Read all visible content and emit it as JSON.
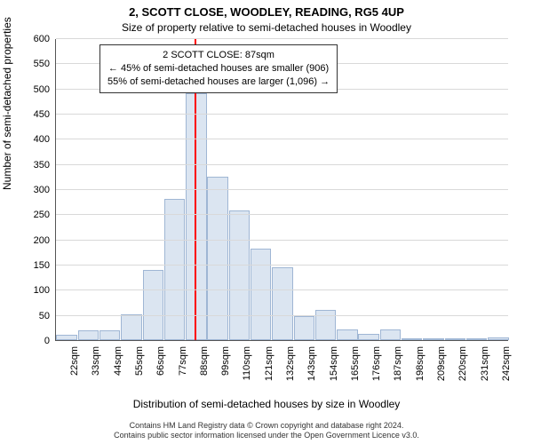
{
  "title_main": "2, SCOTT CLOSE, WOODLEY, READING, RG5 4UP",
  "title_sub": "Size of property relative to semi-detached houses in Woodley",
  "ylabel": "Number of semi-detached properties",
  "xlabel": "Distribution of semi-detached houses by size in Woodley",
  "annotation": {
    "line1": "2 SCOTT CLOSE: 87sqm",
    "line2": "← 45% of semi-detached houses are smaller (906)",
    "line3": "55% of semi-detached houses are larger (1,096) →"
  },
  "footer": {
    "line1": "Contains HM Land Registry data © Crown copyright and database right 2024.",
    "line2": "Contains public sector information licensed under the Open Government Licence v3.0."
  },
  "chart": {
    "type": "histogram",
    "ylim": [
      0,
      600
    ],
    "ytick_step": 50,
    "grid_color": "#d9d9d9",
    "background_color": "#ffffff",
    "bar_fill": "#dbe5f1",
    "bar_border": "#9fb6d4",
    "marker_color": "#ff0000",
    "marker_x_sqm": 87,
    "x_start_sqm": 22,
    "x_step_sqm": 11,
    "x_count": 21,
    "x_unit": "sqm",
    "values": [
      10,
      20,
      20,
      52,
      140,
      280,
      490,
      325,
      258,
      182,
      145,
      47,
      60,
      22,
      12,
      22,
      4,
      2,
      3,
      2,
      5
    ],
    "label_fontsize": 12,
    "tick_fontsize": 11,
    "title_fontsize": 13
  }
}
